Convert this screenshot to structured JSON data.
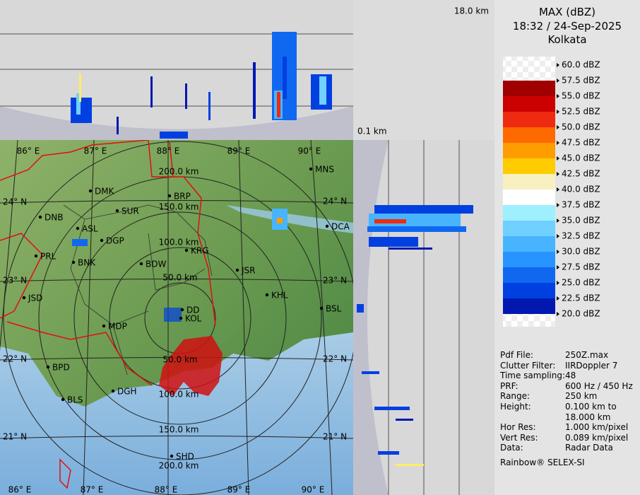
{
  "panel": {
    "title": "MAX (dBZ)",
    "time": "18:32 / 24-Sep-2025",
    "site": "Kolkata"
  },
  "height_labels": {
    "top": "18.0 km",
    "bottom": "0.1 km"
  },
  "legend": [
    {
      "label": "60.0 dBZ"
    },
    {
      "label": "57.5 dBZ",
      "color": "#a00000"
    },
    {
      "label": "55.0 dBZ",
      "color": "#cc0000"
    },
    {
      "label": "52.5 dBZ",
      "color": "#ee2a10"
    },
    {
      "label": "50.0 dBZ",
      "color": "#ff6a00"
    },
    {
      "label": "47.5 dBZ",
      "color": "#ff9c00"
    },
    {
      "label": "45.0 dBZ",
      "color": "#ffcc00"
    },
    {
      "label": "42.5 dBZ",
      "color": "#f8f0c0"
    },
    {
      "label": "40.0 dBZ",
      "color": "#ffffff"
    },
    {
      "label": "37.5 dBZ",
      "color": "#9ef0ff"
    },
    {
      "label": "35.0 dBZ",
      "color": "#70d0ff"
    },
    {
      "label": "32.5 dBZ",
      "color": "#48b4ff"
    },
    {
      "label": "30.0 dBZ",
      "color": "#2894ff"
    },
    {
      "label": "27.5 dBZ",
      "color": "#1068f0"
    },
    {
      "label": "25.0 dBZ",
      "color": "#0040e0"
    },
    {
      "label": "22.5 dBZ",
      "color": "#0018b0"
    },
    {
      "label": "20.0 dBZ"
    }
  ],
  "info": [
    [
      "Pdf File:",
      "250Z.max"
    ],
    [
      "Clutter Filter:",
      "IIRDoppler 7"
    ],
    [
      "Time sampling:",
      "48"
    ],
    [
      "PRF:",
      "600 Hz / 450 Hz"
    ],
    [
      "Range:",
      "250 km"
    ],
    [
      "Height:",
      "0.100 km to 18.000 km"
    ],
    [
      "Hor Res:",
      "1.000 km/pixel"
    ],
    [
      "Vert Res:",
      "0.089 km/pixel"
    ],
    [
      "Data:",
      "Radar Data"
    ]
  ],
  "footer": "Rainbow® SELEX-SI",
  "map": {
    "lon_top": [
      "86° E",
      "87° E",
      "88° E",
      "89° E",
      "90° E"
    ],
    "lon_bottom": [
      "86° E",
      "87° E",
      "88° E",
      "89° E",
      "90° E"
    ],
    "lat_left": [
      "24° N",
      "23° N",
      "22° N",
      "21° N"
    ],
    "lat_right": [
      "24° N",
      "23° N",
      "22° N",
      "21° N"
    ],
    "range_north": [
      "50.0 km",
      "100.0 km",
      "150.0 km",
      "200.0 km"
    ],
    "range_south": [
      "50.0 km",
      "100.0 km",
      "150.0 km",
      "200.0 km"
    ],
    "sites": [
      "MNS",
      "DMK",
      "BRP",
      "DNB",
      "SUR",
      "ASL",
      "DGP",
      "DCA",
      "PRL",
      "KRG",
      "BNK",
      "BDW",
      "JSR",
      "JSD",
      "KHL",
      "DD",
      "BSL",
      "MDP",
      "KOL",
      "BPD",
      "DGH",
      "BLS",
      "SHD"
    ]
  }
}
